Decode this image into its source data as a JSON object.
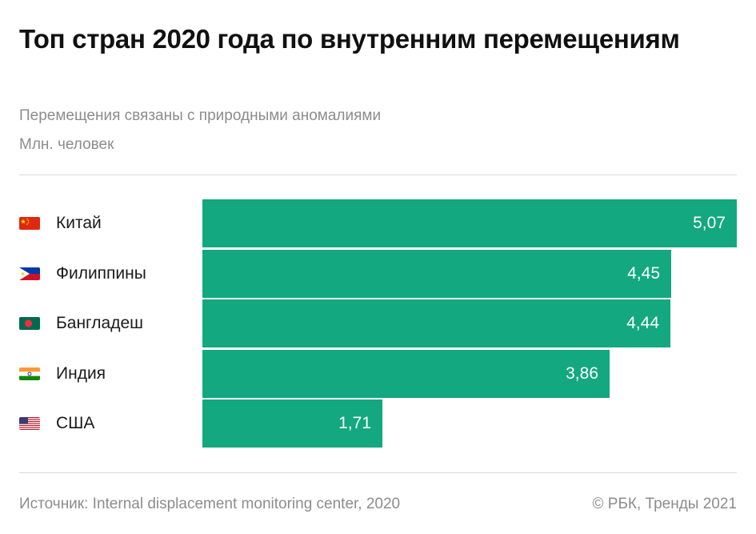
{
  "title": "Топ стран 2020 года по внутренним перемещениям",
  "subtitle": "Перемещения связаны с природными аномалиями",
  "unit": "Млн. человек",
  "footer": {
    "source": "Источник: Internal displacement monitoring center, 2020",
    "copyright": "© РБК, Тренды 2021"
  },
  "chart_data": {
    "type": "bar",
    "orientation": "horizontal",
    "title": "Топ стран 2020 года по внутренним перемещениям",
    "subtitle": "Перемещения связаны с природными аномалиями",
    "ylabel": "Млн. человек",
    "categories": [
      "Китай",
      "Филиппины",
      "Бангладеш",
      "Индия",
      "США"
    ],
    "values": [
      5.07,
      4.45,
      4.44,
      3.86,
      1.71
    ],
    "value_labels": [
      "5,07",
      "4,45",
      "4,44",
      "3,86",
      "1,71"
    ],
    "flags": [
      "china-flag-icon",
      "philippines-flag-icon",
      "bangladesh-flag-icon",
      "india-flag-icon",
      "usa-flag-icon"
    ],
    "xlim": [
      0,
      5.07
    ],
    "bar_color": "#13a87f",
    "grid": false,
    "legend": "none"
  }
}
